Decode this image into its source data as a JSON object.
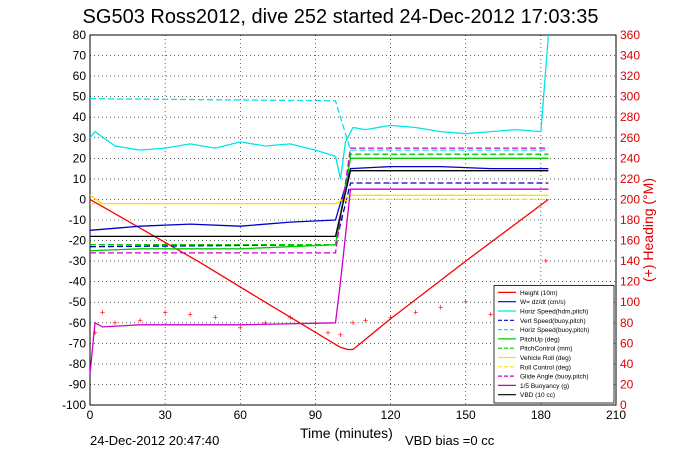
{
  "chart_data": {
    "type": "line",
    "title": "SG503 Ross2012, dive 252 started 24-Dec-2012 17:03:35",
    "xlabel": "Time (minutes)",
    "ylabel_right": "(+) Heading (°M)",
    "footer_left": "24-Dec-2012 20:47:40",
    "footer_right": "VBD bias =0 cc",
    "xlim": [
      0,
      210
    ],
    "ylim": [
      -100,
      80
    ],
    "ylim_right": [
      0,
      360
    ],
    "xticks": [
      0,
      30,
      60,
      90,
      120,
      150,
      180,
      210
    ],
    "yticks": [
      -100,
      -90,
      -80,
      -70,
      -60,
      -50,
      -40,
      -30,
      -20,
      -10,
      0,
      10,
      20,
      30,
      40,
      50,
      60,
      70,
      80
    ],
    "yticks_right": [
      0,
      20,
      40,
      60,
      80,
      100,
      120,
      140,
      160,
      180,
      200,
      220,
      240,
      260,
      280,
      300,
      320,
      340,
      360
    ],
    "grid": true,
    "legend_position": "bottom-right",
    "colors": {
      "axis_right": "#e00000"
    },
    "series": [
      {
        "name": "Height (10m)",
        "color": "#ff0000",
        "style": "solid",
        "x": [
          0,
          43,
          70,
          100,
          103,
          105,
          120,
          150,
          183
        ],
        "y": [
          0,
          -30,
          -50,
          -72,
          -73,
          -73,
          -58,
          -30,
          0
        ]
      },
      {
        "name": "W= dz/dt (cm/s)",
        "color": "#0000cc",
        "style": "solid",
        "x": [
          0,
          20,
          40,
          60,
          80,
          98,
          104,
          120,
          140,
          160,
          180,
          183
        ],
        "y": [
          -15,
          -13,
          -12,
          -13,
          -11,
          -10,
          15,
          16,
          16,
          15,
          15,
          15
        ]
      },
      {
        "name": "Horiz Speed(hdm,pitch)",
        "color": "#00e5e5",
        "style": "solid",
        "x": [
          0,
          2,
          10,
          20,
          30,
          40,
          50,
          60,
          70,
          80,
          90,
          98,
          100,
          102,
          105,
          110,
          120,
          130,
          140,
          150,
          160,
          170,
          180,
          183
        ],
        "y": [
          30,
          33,
          26,
          24,
          25,
          27,
          25,
          28,
          26,
          27,
          24,
          21,
          10,
          28,
          35,
          34,
          36,
          35,
          33,
          32,
          33,
          34,
          33,
          80
        ]
      },
      {
        "name": "Vert Speed(buoy,pitch)",
        "color": "#0000cc",
        "style": "dashed",
        "x": [
          0,
          98,
          104,
          183
        ],
        "y": [
          -23,
          -22,
          8,
          8
        ]
      },
      {
        "name": "Horiz Speed(buoy,pitch)",
        "color": "#00e5e5",
        "style": "dashed",
        "x": [
          0,
          98,
          104,
          183
        ],
        "y": [
          49,
          48,
          24,
          24
        ]
      },
      {
        "name": "PitchUp (deg)",
        "color": "#00cc00",
        "style": "solid",
        "x": [
          0,
          20,
          60,
          98,
          104,
          183
        ],
        "y": [
          -25,
          -24,
          -24,
          -22,
          20,
          20
        ]
      },
      {
        "name": "PitchControl (mm)",
        "color": "#00cc00",
        "style": "dashed",
        "x": [
          0,
          98,
          104,
          183
        ],
        "y": [
          -22,
          -22,
          22,
          22
        ]
      },
      {
        "name": "Vehicle Roll (deg)",
        "color": "#ffe000",
        "style": "solid",
        "x": [
          0,
          5,
          20,
          60,
          98,
          104,
          140,
          183
        ],
        "y": [
          2,
          -2,
          -2,
          -2,
          -2,
          2,
          2,
          2
        ]
      },
      {
        "name": "Roll Control (deg)",
        "color": "#ffe000",
        "style": "dashed",
        "x": [
          0,
          98,
          104,
          183
        ],
        "y": [
          -2,
          -2,
          0,
          0
        ]
      },
      {
        "name": "Glide Angle (buoy,pitch)",
        "color": "#cc00cc",
        "style": "dashed",
        "x": [
          0,
          98,
          104,
          183
        ],
        "y": [
          -26,
          -26,
          25,
          25
        ]
      },
      {
        "name": "1/5 Buoyancy (g)",
        "color": "#cc00cc",
        "style": "solid",
        "x": [
          0,
          2,
          5,
          20,
          60,
          98,
          100,
          104,
          183
        ],
        "y": [
          -85,
          -60,
          -62,
          -61,
          -61,
          -60,
          -40,
          5,
          5
        ]
      },
      {
        "name": "VBD (10 cc)",
        "color": "#000000",
        "style": "solid",
        "x": [
          0,
          98,
          104,
          183
        ],
        "y": [
          -18,
          -18,
          14,
          14
        ]
      },
      {
        "name": "Heading",
        "axis": "right",
        "color": "#ff0000",
        "style": "markers",
        "x": [
          2,
          5,
          10,
          20,
          30,
          40,
          50,
          60,
          70,
          80,
          90,
          95,
          100,
          105,
          110,
          120,
          130,
          140,
          150,
          160,
          170,
          180,
          182
        ],
        "y": [
          70,
          90,
          80,
          82,
          90,
          88,
          85,
          75,
          80,
          85,
          80,
          70,
          68,
          80,
          82,
          85,
          90,
          95,
          100,
          88,
          85,
          90,
          140
        ]
      }
    ]
  }
}
